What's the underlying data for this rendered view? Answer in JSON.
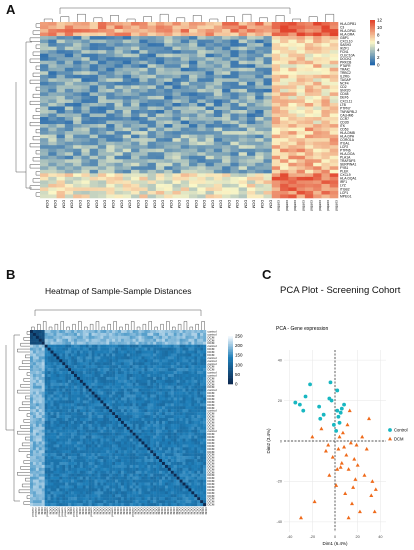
{
  "panels": {
    "a": {
      "letter": "A"
    },
    "b": {
      "letter": "B",
      "title": "Heatmap of Sample-Sample Distances"
    },
    "c": {
      "letter": "C",
      "title": "PCA Plot - Screening Cohort",
      "subtitle": "PCA - Gene expression"
    }
  },
  "colors": {
    "heat_low": "#2166ac",
    "heat_mid": "#fbf7c7",
    "heat_high": "#e2442d",
    "dist_low": "#0c2a52",
    "dist_high": "#f1f8fd",
    "control": "#18b7c1",
    "dcm": "#ef6a1a"
  },
  "chart_data": [
    {
      "type": "heatmap",
      "panel": "A",
      "genes": [
        "HLA-DPB1",
        "C3",
        "HLA-DPA1",
        "HLA-DRA",
        "GBP1",
        "CXCL10",
        "SASH3",
        "IKZF1",
        "FCN1",
        "CLEC10A",
        "DOCK2",
        "PRKCB",
        "PTAFR",
        "TRAIC",
        "TRBC2",
        "IL2RG",
        "TAGAP",
        "NCF4",
        "CD2",
        "SNX20",
        "CD48",
        "DEF6",
        "CXCL11",
        "LTB",
        "PTPN7",
        "TNFAIP8L2",
        "CALHM6",
        "CCR7",
        "CD3D",
        "ITK",
        "CD53",
        "HLA-DMB",
        "HLA-DPA",
        "CORO1A",
        "ITGAL",
        "LCP2",
        "PTPN6",
        "HLA-DOA",
        "PLA1A",
        "TRAF3IP3",
        "SERPINA1",
        "FYB1",
        "PLEK",
        "CXCL9",
        "HLA-DQA1",
        "IRF1",
        "LYZ",
        "ITGB2",
        "LCP1",
        "MPEG1"
      ],
      "columns_left": 28,
      "columns_right": 8,
      "sample_label_left": "DCM",
      "sample_label_right": "control",
      "legend_ticks": [
        12,
        10,
        8,
        6,
        4,
        2,
        0
      ],
      "zlim": [
        0,
        12
      ]
    },
    {
      "type": "heatmap",
      "panel": "B",
      "title": "Heatmap of Sample-Sample Distances",
      "n_samples": 60,
      "diagonal_value": 0,
      "legend_ticks": [
        250,
        200,
        150,
        100,
        50,
        0
      ],
      "zlim": [
        0,
        250
      ],
      "row_labels": [
        "control",
        "control",
        "DCM",
        "DCM",
        "DCM",
        "control",
        "DCM",
        "DCM",
        "DCM",
        "control",
        "control",
        "control",
        "DCM",
        "DCM",
        "control",
        "control",
        "DCM",
        "DCM",
        "DCM",
        "DCM",
        "control",
        "DCM",
        "DCM",
        "DCM",
        "DCM",
        "DCM",
        "DCM",
        "control",
        "DCM",
        "DCM",
        "DCM",
        "DCM",
        "DCM",
        "DCM",
        "control",
        "DCM",
        "DCM",
        "DCM",
        "DCM",
        "DCM",
        "DCM",
        "DCM",
        "DCM",
        "DCM",
        "DCM",
        "DCM",
        "DCM",
        "DCM",
        "DCM",
        "DCM",
        "DCM",
        "DCM",
        "DCM",
        "DCM",
        "DCM",
        "DCM",
        "DCM",
        "DCM",
        "DCM",
        "DCM"
      ]
    },
    {
      "type": "scatter",
      "panel": "C",
      "title": "PCA Plot - Screening Cohort",
      "subtitle": "PCA - Gene expression",
      "xlabel": "Dim1 (6.4%)",
      "ylabel": "Dim2 (3.4%)",
      "xlim": [
        -45,
        45
      ],
      "ylim": [
        -45,
        45
      ],
      "xticks": [
        -40,
        -20,
        0,
        20,
        40
      ],
      "yticks": [
        -40,
        -20,
        0,
        20,
        40
      ],
      "grid": true,
      "legend_position": "right",
      "series": [
        {
          "name": "Control",
          "marker": "circle",
          "points": [
            [
              -35,
              19
            ],
            [
              -28,
              15
            ],
            [
              -22,
              28
            ],
            [
              -14,
              17
            ],
            [
              -5,
              21
            ],
            [
              2,
              15
            ],
            [
              5,
              14
            ],
            [
              6,
              16
            ],
            [
              8,
              18
            ],
            [
              4,
              9
            ],
            [
              -3,
              20
            ],
            [
              -10,
              13
            ],
            [
              -13,
              11
            ],
            [
              -1,
              8
            ],
            [
              3,
              12
            ],
            [
              2,
              25
            ],
            [
              -4,
              29
            ],
            [
              1,
              5
            ],
            [
              -31,
              18
            ],
            [
              -26,
              22
            ]
          ]
        },
        {
          "name": "DCM",
          "marker": "triangle",
          "points": [
            [
              -30,
              -38
            ],
            [
              -18,
              -30
            ],
            [
              -20,
              2
            ],
            [
              -12,
              6
            ],
            [
              3,
              -4
            ],
            [
              6,
              -11
            ],
            [
              8,
              -3
            ],
            [
              10,
              -7
            ],
            [
              12,
              -14
            ],
            [
              14,
              -1
            ],
            [
              16,
              -23
            ],
            [
              -5,
              -17
            ],
            [
              -8,
              -5
            ],
            [
              4,
              2
            ],
            [
              7,
              4
            ],
            [
              11,
              8
            ],
            [
              13,
              15
            ],
            [
              17,
              -9
            ],
            [
              20,
              -12
            ],
            [
              22,
              -35
            ],
            [
              26,
              -17
            ],
            [
              30,
              11
            ],
            [
              33,
              -20
            ],
            [
              36,
              -24
            ],
            [
              32,
              -27
            ],
            [
              28,
              -4
            ],
            [
              24,
              2
            ],
            [
              18,
              -19
            ],
            [
              15,
              -31
            ],
            [
              -2,
              -8
            ],
            [
              1,
              -22
            ],
            [
              9,
              -26
            ],
            [
              5,
              -13
            ],
            [
              35,
              -35
            ],
            [
              12,
              -38
            ],
            [
              -6,
              -2
            ],
            [
              2,
              -14
            ],
            [
              19,
              -2
            ]
          ]
        }
      ]
    }
  ]
}
